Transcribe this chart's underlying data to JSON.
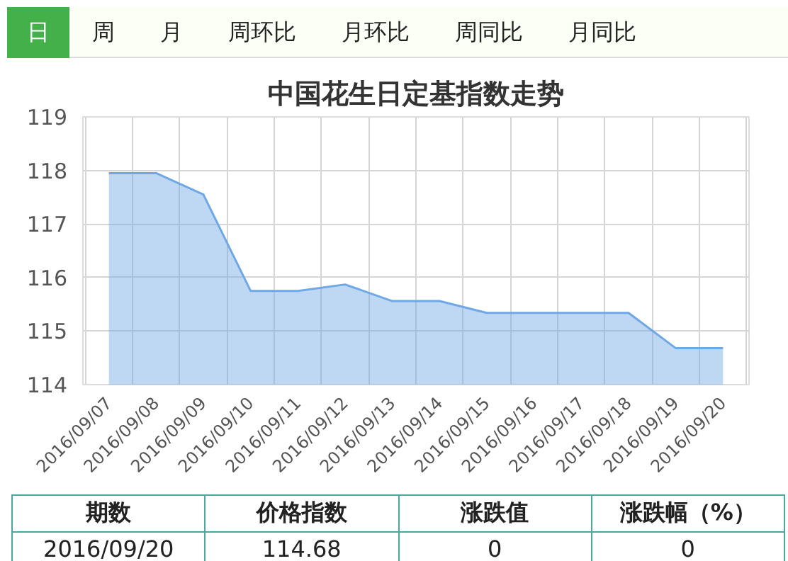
{
  "chart_data": {
    "type": "area",
    "title": "中国花生日定基指数走势",
    "categories": [
      "2016/09/07",
      "2016/09/08",
      "2016/09/09",
      "2016/09/10",
      "2016/09/11",
      "2016/09/12",
      "2016/09/13",
      "2016/09/14",
      "2016/09/15",
      "2016/09/16",
      "2016/09/17",
      "2016/09/18",
      "2016/09/19",
      "2016/09/20"
    ],
    "series": [
      {
        "color": "#6fa8e4",
        "values": [
          117.95,
          117.95,
          117.55,
          115.75,
          115.75,
          115.87,
          115.56,
          115.56,
          115.34,
          115.34,
          115.34,
          115.34,
          114.68,
          114.68
        ]
      }
    ],
    "ylim": [
      114,
      119
    ],
    "yticks": [
      114,
      115,
      116,
      117,
      118,
      119
    ],
    "grid": true,
    "annotations": [
      "日",
      "周",
      "月",
      "周环比",
      "月环比",
      "周同比",
      "月同比",
      "期数",
      "价格指数",
      "涨跌值",
      "涨跌幅（%）",
      "2016/09/20",
      "114.68",
      "0",
      "0"
    ]
  }
}
